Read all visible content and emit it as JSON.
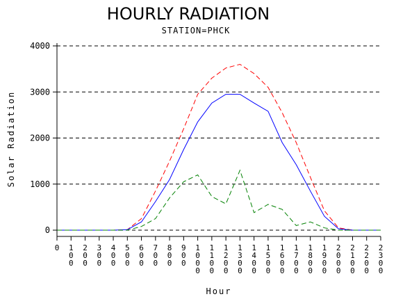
{
  "chart_data": {
    "type": "line",
    "title": "HOURLY RADIATION",
    "subtitle": "STATION=PHCK",
    "xlabel": "Hour",
    "ylabel": "Solar Radiation",
    "x": [
      0,
      100,
      200,
      300,
      400,
      500,
      600,
      700,
      800,
      900,
      1000,
      1100,
      1200,
      1300,
      1400,
      1500,
      1600,
      1700,
      1800,
      1900,
      2000,
      2100,
      2200,
      2300
    ],
    "x_tick_labels": [
      "0",
      "100",
      "200",
      "300",
      "400",
      "500",
      "600",
      "700",
      "800",
      "900",
      "1000",
      "1100",
      "1200",
      "1300",
      "1400",
      "1500",
      "1600",
      "1700",
      "1800",
      "1900",
      "2000",
      "2100",
      "2200",
      "2300"
    ],
    "ylim": [
      0,
      4000
    ],
    "y_ticks": [
      0,
      1000,
      2000,
      3000,
      4000
    ],
    "grid": "horizontal dashed",
    "series": [
      {
        "color": "#ff0000",
        "style": "dashed",
        "values": [
          0,
          0,
          0,
          0,
          0,
          10,
          250,
          850,
          1500,
          2200,
          2950,
          3300,
          3520,
          3600,
          3400,
          3100,
          2550,
          1900,
          1150,
          420,
          50,
          0,
          0,
          0
        ]
      },
      {
        "color": "#0000ff",
        "style": "solid",
        "values": [
          0,
          0,
          0,
          0,
          0,
          10,
          180,
          620,
          1100,
          1750,
          2350,
          2760,
          2950,
          2950,
          2760,
          2580,
          1900,
          1420,
          850,
          300,
          30,
          0,
          0,
          0
        ]
      },
      {
        "color": "#008000",
        "style": "dashed",
        "values": [
          0,
          0,
          0,
          0,
          0,
          0,
          80,
          250,
          700,
          1050,
          1200,
          730,
          570,
          1300,
          380,
          560,
          450,
          100,
          180,
          50,
          0,
          0,
          0,
          0
        ]
      }
    ]
  }
}
